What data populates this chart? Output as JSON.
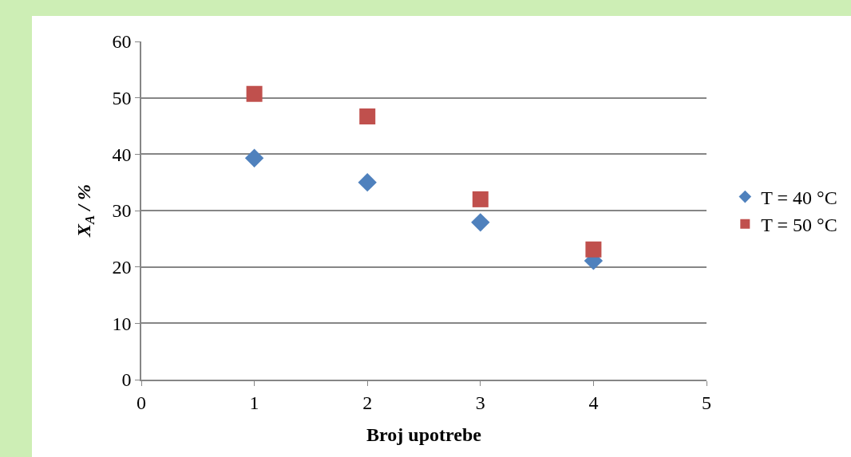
{
  "chart_data": {
    "type": "scatter",
    "xlabel": "Broj upotrebe",
    "ylabel": "X$_{A}$ / %",
    "x": [
      1,
      2,
      3,
      4
    ],
    "series": [
      {
        "name": "T = 40 °C",
        "color": "#4f81bd",
        "marker": "diamond",
        "values": [
          39.3,
          35.0,
          27.9,
          21.1
        ]
      },
      {
        "name": "T = 50 °C",
        "color": "#c0504d",
        "marker": "square",
        "values": [
          50.7,
          46.7,
          32.0,
          23.1
        ]
      }
    ],
    "xlim": [
      0,
      5
    ],
    "xticks": [
      0,
      1,
      2,
      3,
      4,
      5
    ],
    "ylim": [
      0,
      60
    ],
    "yticks": [
      0,
      10,
      20,
      30,
      40,
      50,
      60
    ],
    "grid": "y",
    "legend": "right"
  }
}
